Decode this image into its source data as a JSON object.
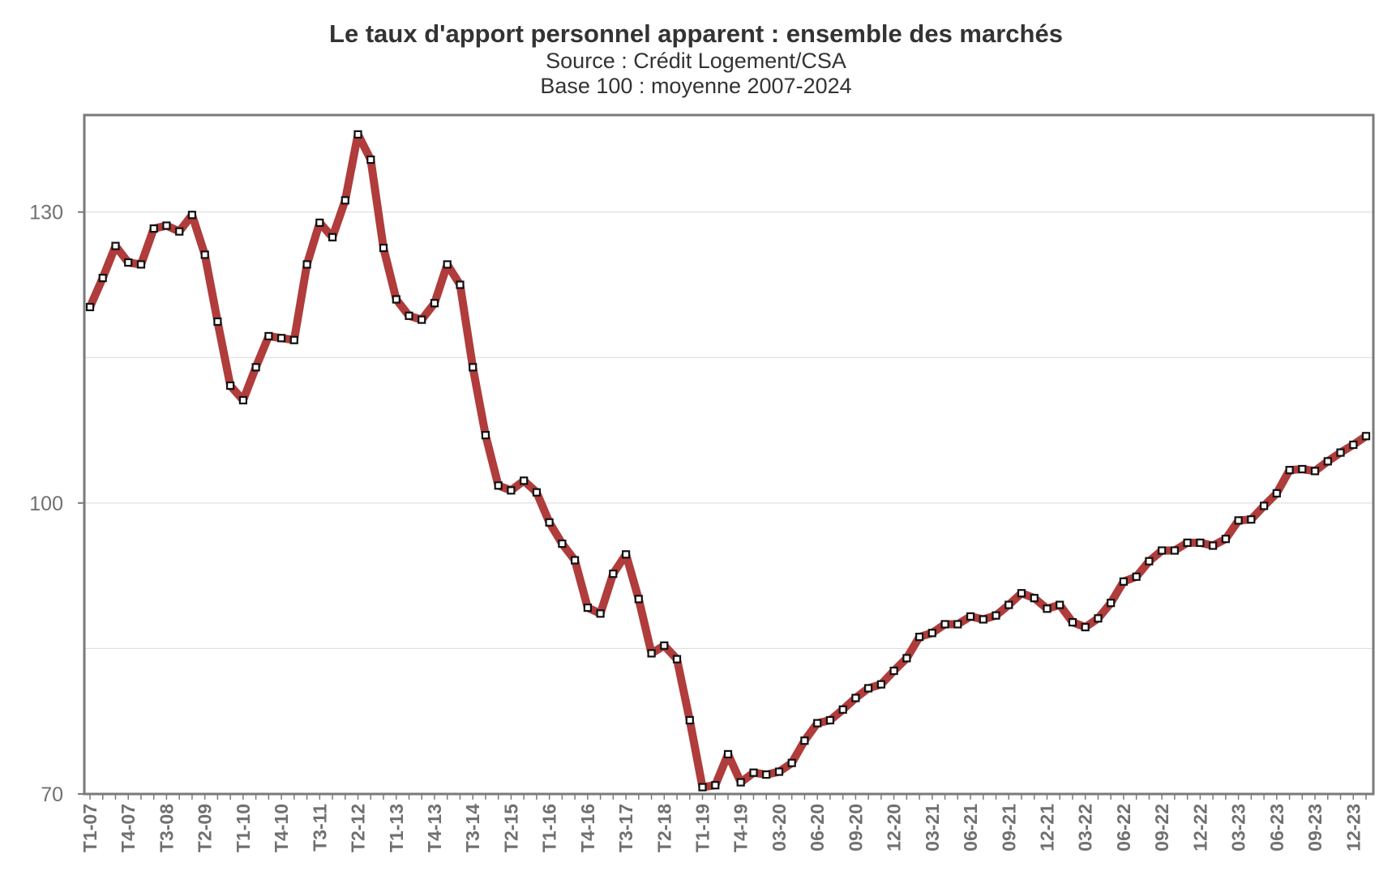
{
  "chart_data": {
    "type": "line",
    "title": "Le taux d'apport personnel apparent : ensemble des marchés",
    "subtitle": "Source : Crédit Logement/CSA",
    "subtitle2": "Base 100 : moyenne 2007-2024",
    "xlabel": "",
    "ylabel": "",
    "ylim": [
      70,
      140
    ],
    "yticks": [
      70,
      100,
      130
    ],
    "grid": true,
    "legend": "none",
    "line_color": "#b03c3c",
    "marker": "white-square",
    "x_tick_labels": [
      "T1-07",
      "T4-07",
      "T3-08",
      "T2-09",
      "T1-10",
      "T4-10",
      "T3-11",
      "T2-12",
      "T1-13",
      "T4-13",
      "T3-14",
      "T2-15",
      "T1-16",
      "T4-16",
      "T3-17",
      "T2-18",
      "T1-19",
      "T4-19",
      "03-20",
      "06-20",
      "09-20",
      "12-20",
      "03-21",
      "06-21",
      "09-21",
      "12-21",
      "03-22",
      "06-22",
      "09-22",
      "12-22",
      "03-23",
      "06-23",
      "09-23",
      "12-23"
    ],
    "x_tick_every": 3,
    "values": [
      120.2,
      123.2,
      126.5,
      124.8,
      124.6,
      128.3,
      128.6,
      128.0,
      129.7,
      125.6,
      118.7,
      112.1,
      110.6,
      114.0,
      117.2,
      117.0,
      116.8,
      124.6,
      128.9,
      127.4,
      131.2,
      138.0,
      135.4,
      126.3,
      121.0,
      119.3,
      118.9,
      120.6,
      124.6,
      122.5,
      114.0,
      107.0,
      101.8,
      101.3,
      102.3,
      101.1,
      98.0,
      95.8,
      94.1,
      89.2,
      88.6,
      92.7,
      94.7,
      90.1,
      84.5,
      85.3,
      83.9,
      77.6,
      70.7,
      70.9,
      74.1,
      71.2,
      72.2,
      72.0,
      72.3,
      73.2,
      75.5,
      77.3,
      77.6,
      78.7,
      79.9,
      80.9,
      81.3,
      82.7,
      84.0,
      86.2,
      86.6,
      87.5,
      87.5,
      88.3,
      88.0,
      88.4,
      89.5,
      90.7,
      90.2,
      89.1,
      89.5,
      87.7,
      87.2,
      88.1,
      89.7,
      91.9,
      92.4,
      94.0,
      95.1,
      95.1,
      95.9,
      95.9,
      95.6,
      96.3,
      98.2,
      98.3,
      99.7,
      101.0,
      103.4,
      103.5,
      103.3,
      104.3,
      105.2,
      106.0,
      106.9
    ]
  }
}
